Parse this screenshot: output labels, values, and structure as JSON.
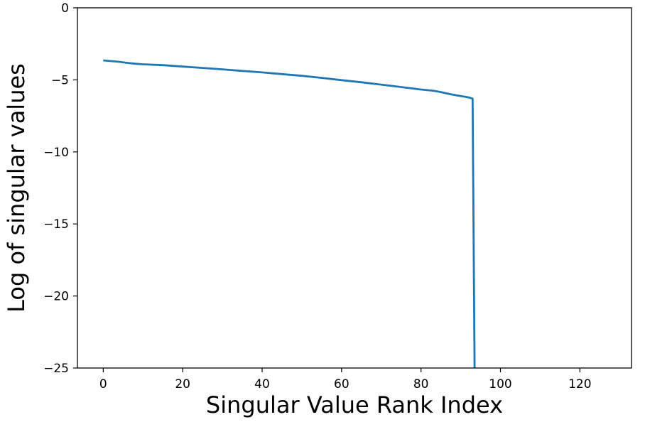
{
  "chart_data": {
    "type": "line",
    "title": "",
    "xlabel": "Singular Value Rank Index",
    "ylabel": "Log of singular values",
    "xlim": [
      -6.5,
      133
    ],
    "ylim": [
      -25,
      0
    ],
    "xticks": [
      0,
      20,
      40,
      60,
      80,
      100,
      120
    ],
    "xtick_labels": [
      "0",
      "20",
      "40",
      "60",
      "80",
      "100",
      "120"
    ],
    "yticks": [
      0,
      -5,
      -10,
      -15,
      -20,
      -25
    ],
    "ytick_labels": [
      "0",
      "−5",
      "−10",
      "−15",
      "−20",
      "−25"
    ],
    "grid": false,
    "series": [
      {
        "color": "#1f77b4",
        "x": [
          0,
          2,
          4,
          6,
          8,
          10,
          15,
          20,
          25,
          30,
          35,
          40,
          45,
          50,
          55,
          60,
          65,
          70,
          75,
          80,
          83,
          85,
          87,
          89,
          91,
          92,
          93,
          93.5
        ],
        "y": [
          -3.65,
          -3.7,
          -3.75,
          -3.82,
          -3.88,
          -3.92,
          -3.98,
          -4.08,
          -4.17,
          -4.27,
          -4.38,
          -4.48,
          -4.6,
          -4.72,
          -4.86,
          -5.02,
          -5.17,
          -5.33,
          -5.5,
          -5.67,
          -5.75,
          -5.85,
          -5.97,
          -6.08,
          -6.17,
          -6.22,
          -6.3,
          -25
        ]
      }
    ]
  }
}
